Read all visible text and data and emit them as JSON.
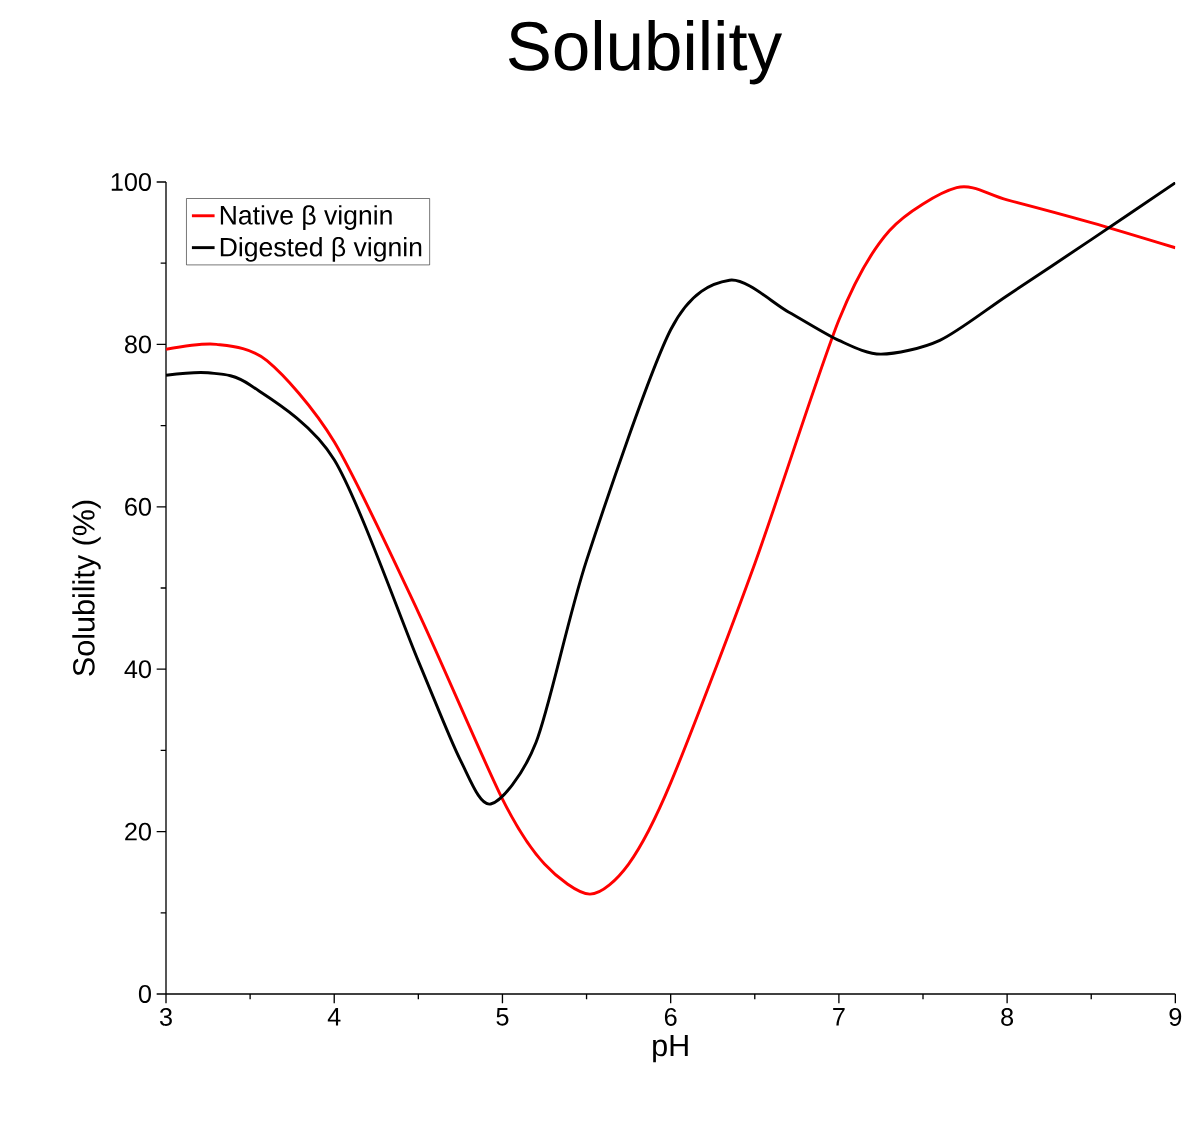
{
  "chart_data": {
    "type": "line",
    "title": "Solubility",
    "xlabel": "pH",
    "ylabel": "Solubility (%)",
    "xlim": [
      3,
      9
    ],
    "ylim": [
      0,
      100
    ],
    "xticks": [
      3,
      4,
      5,
      6,
      7,
      8,
      9
    ],
    "yticks": [
      0,
      20,
      40,
      60,
      80,
      100
    ],
    "legend": "top left",
    "grid": false,
    "marker": "none",
    "line_style": "solid",
    "series": [
      {
        "name": "Native β vignin",
        "color": "#ff0000",
        "x": [
          3,
          3.3,
          3.6,
          4,
          4.5,
          5,
          5.25,
          5.52,
          5.75,
          6,
          6.5,
          7,
          7.3,
          7.7,
          8,
          8.5,
          9
        ],
        "values": [
          79.4,
          80,
          78,
          68,
          47,
          24,
          16,
          12.3,
          16,
          26,
          53,
          83,
          94,
          99.3,
          97.8,
          95,
          91.9
        ]
      },
      {
        "name": "Digested β vignin",
        "color": "#000000",
        "x": [
          3,
          3.25,
          3.5,
          4,
          4.5,
          4.75,
          4.93,
          5.2,
          5.5,
          6,
          6.35,
          6.7,
          7,
          7.25,
          7.6,
          8,
          8.5,
          9
        ],
        "values": [
          76.2,
          76.5,
          75,
          65.8,
          41,
          28.8,
          23.4,
          31,
          53.4,
          81.8,
          87.9,
          84,
          80.5,
          78.8,
          80.5,
          86,
          92.9,
          99.9
        ]
      }
    ]
  }
}
